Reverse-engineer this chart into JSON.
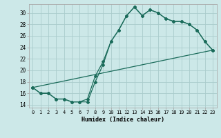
{
  "xlabel": "Humidex (Indice chaleur)",
  "bg_color": "#cce8e8",
  "line_color": "#1a6b5a",
  "grid_color": "#aacccc",
  "xlim": [
    -0.5,
    23.5
  ],
  "ylim": [
    13.5,
    31.5
  ],
  "yticks": [
    14,
    16,
    18,
    20,
    22,
    24,
    26,
    28,
    30
  ],
  "xticks": [
    0,
    1,
    2,
    3,
    4,
    5,
    6,
    7,
    8,
    9,
    10,
    11,
    12,
    13,
    14,
    15,
    16,
    17,
    18,
    19,
    20,
    21,
    22,
    23
  ],
  "line1_x": [
    0,
    1,
    2,
    3,
    4,
    5,
    6,
    7,
    8,
    9,
    10,
    11,
    12,
    13,
    14,
    15,
    16,
    17,
    18,
    19,
    20,
    21,
    22,
    23
  ],
  "line1_y": [
    17,
    16,
    16,
    15,
    15,
    14.5,
    14.5,
    14.5,
    18,
    21,
    25,
    27,
    29.5,
    31,
    29.5,
    30.5,
    30,
    29,
    28.5,
    28.5,
    28,
    27,
    25,
    23.5
  ],
  "line2_x": [
    0,
    1,
    2,
    3,
    4,
    5,
    6,
    7,
    8,
    9,
    10,
    11,
    12,
    13,
    14,
    15,
    16,
    17,
    18,
    19,
    20,
    21,
    22,
    23
  ],
  "line2_y": [
    17,
    16,
    16,
    15,
    15,
    14.5,
    14.5,
    15,
    19,
    21.5,
    25,
    27,
    29.5,
    31,
    29.5,
    30.5,
    30,
    29,
    28.5,
    28.5,
    28,
    27,
    25,
    23.5
  ],
  "line3_x": [
    0,
    23
  ],
  "line3_y": [
    17,
    23.5
  ],
  "xlabel_fontsize": 6,
  "tick_fontsize": 5
}
